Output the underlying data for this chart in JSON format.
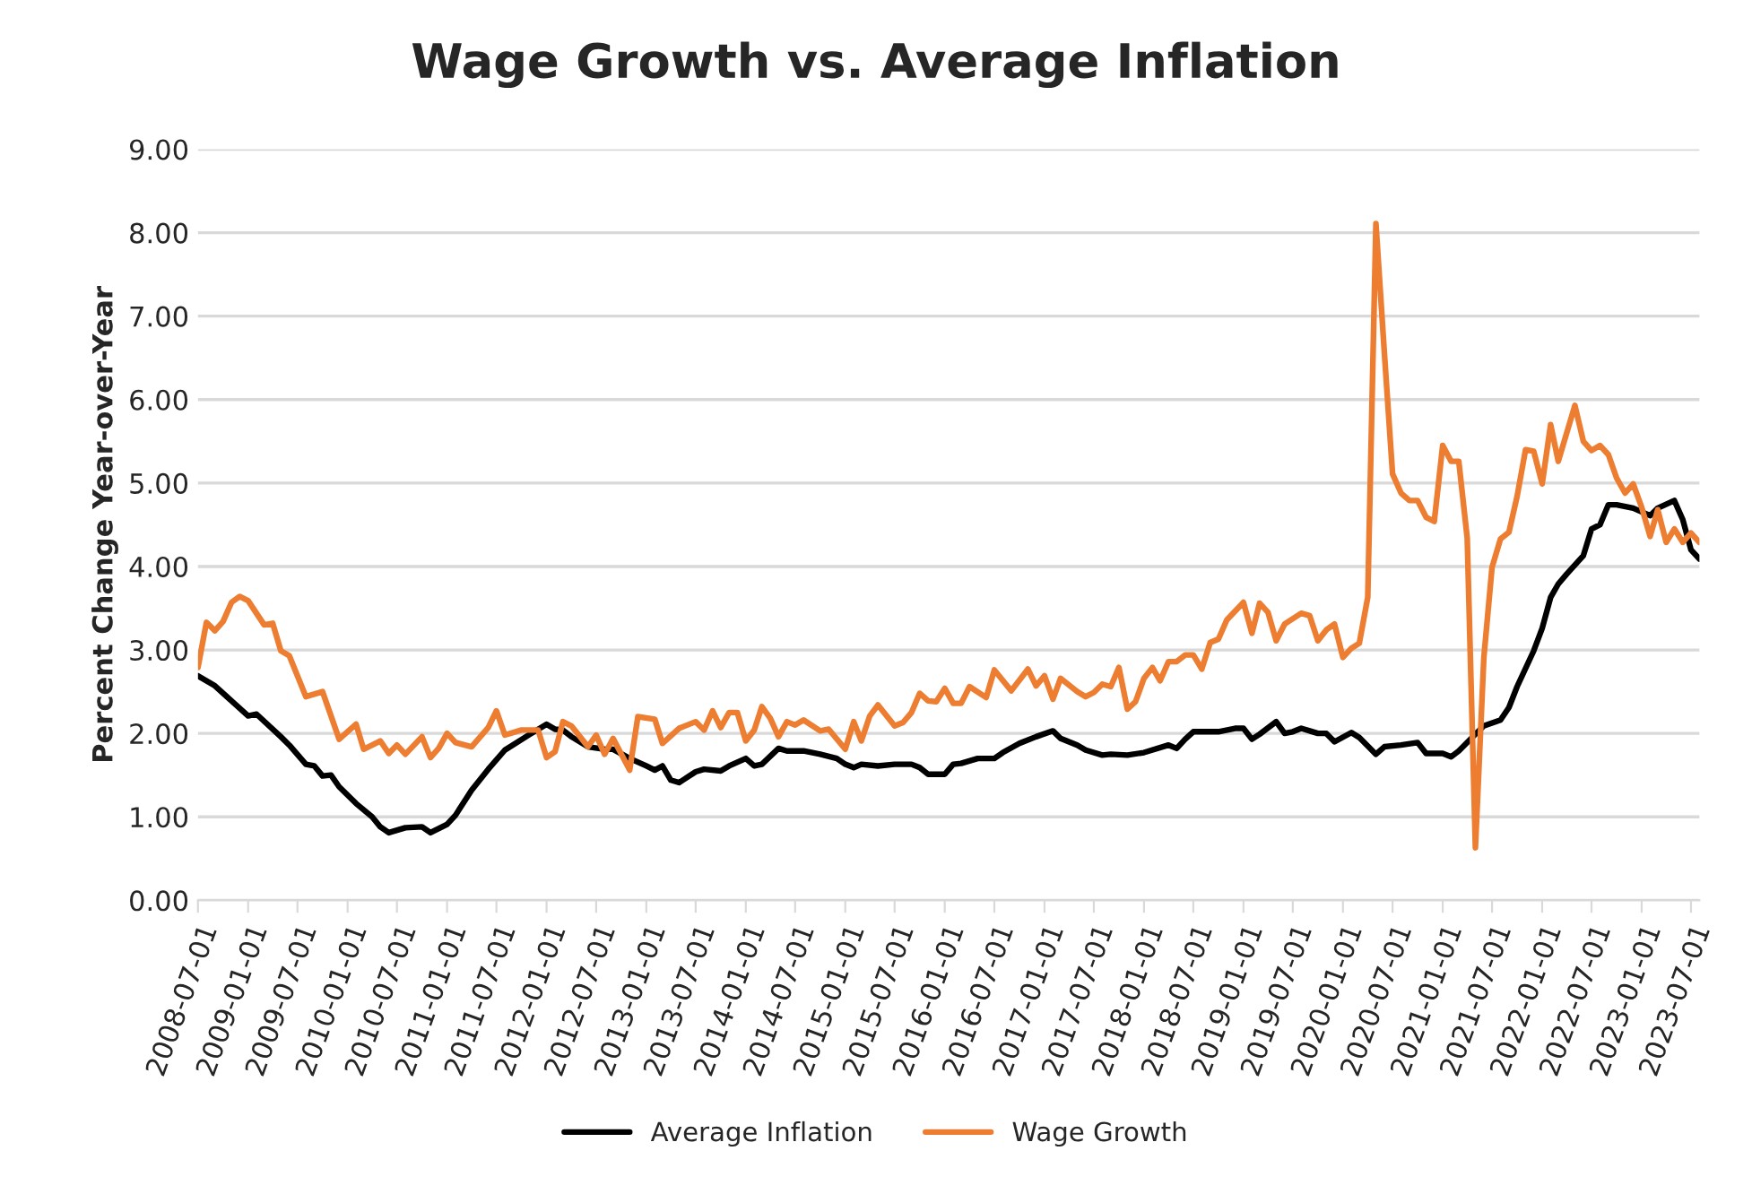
{
  "chart_data": {
    "type": "line",
    "title": "Wage Growth vs. Average Inflation",
    "ylabel": "Percent Change Year-over-Year",
    "series": [
      {
        "name": "Average Inflation",
        "color": "#000000",
        "x": [
          "2008-07",
          "2008-09",
          "2008-11",
          "2009-01",
          "2009-02",
          "2009-05",
          "2009-06",
          "2009-08",
          "2009-09",
          "2009-10",
          "2009-11",
          "2009-12",
          "2010-02",
          "2010-04",
          "2010-05",
          "2010-06",
          "2010-08",
          "2010-10",
          "2010-11",
          "2011-01",
          "2011-02",
          "2011-04",
          "2011-06",
          "2011-08",
          "2011-11",
          "2012-01",
          "2012-02",
          "2012-03",
          "2012-04",
          "2012-06",
          "2012-08",
          "2012-09",
          "2012-11",
          "2013-01",
          "2013-02",
          "2013-03",
          "2013-04",
          "2013-05",
          "2013-07",
          "2013-08",
          "2013-10",
          "2013-11",
          "2014-01",
          "2014-02",
          "2014-03",
          "2014-05",
          "2014-06",
          "2014-08",
          "2014-10",
          "2014-12",
          "2015-01",
          "2015-02",
          "2015-03",
          "2015-05",
          "2015-07",
          "2015-09",
          "2015-10",
          "2015-11",
          "2016-01",
          "2016-02",
          "2016-03",
          "2016-05",
          "2016-07",
          "2016-08",
          "2016-10",
          "2016-12",
          "2017-02",
          "2017-03",
          "2017-05",
          "2017-06",
          "2017-08",
          "2017-09",
          "2017-11",
          "2018-01",
          "2018-04",
          "2018-05",
          "2018-06",
          "2018-07",
          "2018-10",
          "2018-12",
          "2019-01",
          "2019-02",
          "2019-03",
          "2019-05",
          "2019-06",
          "2019-07",
          "2019-08",
          "2019-09",
          "2019-10",
          "2019-11",
          "2019-12",
          "2020-02",
          "2020-03",
          "2020-05",
          "2020-06",
          "2020-08",
          "2020-10",
          "2020-11",
          "2021-01",
          "2021-02",
          "2021-03",
          "2021-05",
          "2021-06",
          "2021-08",
          "2021-09",
          "2021-10",
          "2021-12",
          "2022-01",
          "2022-02",
          "2022-03",
          "2022-04",
          "2022-06",
          "2022-07",
          "2022-08",
          "2022-09",
          "2022-10",
          "2022-12",
          "2023-02",
          "2023-03",
          "2023-05",
          "2023-06",
          "2023-07",
          "2023-08"
        ],
        "values": [
          2.69,
          2.57,
          2.39,
          2.21,
          2.23,
          1.96,
          1.86,
          1.63,
          1.61,
          1.49,
          1.5,
          1.36,
          1.16,
          1.0,
          0.88,
          0.81,
          0.87,
          0.88,
          0.81,
          0.91,
          1.02,
          1.32,
          1.57,
          1.8,
          1.99,
          2.11,
          2.05,
          2.04,
          1.96,
          1.84,
          1.81,
          1.81,
          1.7,
          1.61,
          1.56,
          1.61,
          1.44,
          1.41,
          1.54,
          1.57,
          1.55,
          1.61,
          1.7,
          1.61,
          1.63,
          1.82,
          1.79,
          1.79,
          1.75,
          1.7,
          1.63,
          1.59,
          1.63,
          1.61,
          1.63,
          1.63,
          1.59,
          1.51,
          1.51,
          1.63,
          1.64,
          1.7,
          1.7,
          1.77,
          1.88,
          1.96,
          2.03,
          1.94,
          1.86,
          1.8,
          1.74,
          1.75,
          1.74,
          1.77,
          1.86,
          1.82,
          1.93,
          2.02,
          2.02,
          2.06,
          2.06,
          1.93,
          1.99,
          2.14,
          2.0,
          2.02,
          2.06,
          2.03,
          2.0,
          2.0,
          1.9,
          2.01,
          1.95,
          1.75,
          1.84,
          1.86,
          1.89,
          1.76,
          1.76,
          1.72,
          1.79,
          1.99,
          2.09,
          2.16,
          2.31,
          2.56,
          2.99,
          3.26,
          3.63,
          3.79,
          3.91,
          4.13,
          4.45,
          4.5,
          4.74,
          4.74,
          4.7,
          4.61,
          4.7,
          4.79,
          4.56,
          4.2,
          4.09
        ]
      },
      {
        "name": "Wage Growth",
        "color": "#ed7d31",
        "x": [
          "2008-07",
          "2008-08",
          "2008-09",
          "2008-10",
          "2008-11",
          "2008-12",
          "2009-01",
          "2009-03",
          "2009-04",
          "2009-05",
          "2009-06",
          "2009-08",
          "2009-10",
          "2009-12",
          "2010-02",
          "2010-03",
          "2010-05",
          "2010-06",
          "2010-07",
          "2010-08",
          "2010-10",
          "2010-11",
          "2010-12",
          "2011-01",
          "2011-02",
          "2011-04",
          "2011-06",
          "2011-07",
          "2011-08",
          "2011-10",
          "2011-12",
          "2012-01",
          "2012-02",
          "2012-03",
          "2012-04",
          "2012-06",
          "2012-07",
          "2012-08",
          "2012-09",
          "2012-11",
          "2012-12",
          "2013-02",
          "2013-03",
          "2013-05",
          "2013-07",
          "2013-08",
          "2013-09",
          "2013-10",
          "2013-11",
          "2013-12",
          "2014-01",
          "2014-02",
          "2014-03",
          "2014-04",
          "2014-05",
          "2014-06",
          "2014-07",
          "2014-08",
          "2014-10",
          "2014-11",
          "2015-01",
          "2015-02",
          "2015-03",
          "2015-04",
          "2015-05",
          "2015-07",
          "2015-08",
          "2015-09",
          "2015-10",
          "2015-11",
          "2015-12",
          "2016-01",
          "2016-02",
          "2016-03",
          "2016-04",
          "2016-06",
          "2016-07",
          "2016-09",
          "2016-11",
          "2016-12",
          "2017-01",
          "2017-02",
          "2017-03",
          "2017-05",
          "2017-06",
          "2017-07",
          "2017-08",
          "2017-09",
          "2017-10",
          "2017-11",
          "2017-12",
          "2018-01",
          "2018-02",
          "2018-03",
          "2018-04",
          "2018-05",
          "2018-06",
          "2018-07",
          "2018-08",
          "2018-09",
          "2018-10",
          "2018-11",
          "2019-01",
          "2019-02",
          "2019-03",
          "2019-04",
          "2019-05",
          "2019-06",
          "2019-08",
          "2019-09",
          "2019-10",
          "2019-11",
          "2019-12",
          "2020-01",
          "2020-02",
          "2020-03",
          "2020-04",
          "2020-05",
          "2020-06",
          "2020-07",
          "2020-08",
          "2020-09",
          "2020-10",
          "2020-11",
          "2020-12",
          "2021-01",
          "2021-02",
          "2021-03",
          "2021-04",
          "2021-05",
          "2021-06",
          "2021-07",
          "2021-08",
          "2021-09",
          "2021-10",
          "2021-11",
          "2021-12",
          "2022-01",
          "2022-02",
          "2022-03",
          "2022-05",
          "2022-06",
          "2022-07",
          "2022-08",
          "2022-09",
          "2022-10",
          "2022-11",
          "2022-12",
          "2023-01",
          "2023-02",
          "2023-03",
          "2023-04",
          "2023-05",
          "2023-06",
          "2023-07",
          "2023-08"
        ],
        "values": [
          2.79,
          3.33,
          3.23,
          3.34,
          3.57,
          3.64,
          3.59,
          3.3,
          3.32,
          2.99,
          2.93,
          2.44,
          2.5,
          1.93,
          2.11,
          1.81,
          1.91,
          1.76,
          1.86,
          1.75,
          1.96,
          1.71,
          1.82,
          2.0,
          1.89,
          1.84,
          2.07,
          2.27,
          1.98,
          2.04,
          2.04,
          1.71,
          1.78,
          2.14,
          2.09,
          1.84,
          1.98,
          1.75,
          1.94,
          1.56,
          2.2,
          2.17,
          1.88,
          2.06,
          2.14,
          2.04,
          2.27,
          2.07,
          2.25,
          2.25,
          1.91,
          2.04,
          2.32,
          2.18,
          1.96,
          2.14,
          2.1,
          2.16,
          2.03,
          2.05,
          1.81,
          2.14,
          1.91,
          2.21,
          2.34,
          2.09,
          2.13,
          2.25,
          2.48,
          2.39,
          2.38,
          2.54,
          2.36,
          2.36,
          2.56,
          2.43,
          2.76,
          2.51,
          2.77,
          2.57,
          2.69,
          2.41,
          2.66,
          2.5,
          2.44,
          2.49,
          2.59,
          2.56,
          2.79,
          2.29,
          2.38,
          2.66,
          2.79,
          2.63,
          2.86,
          2.86,
          2.94,
          2.94,
          2.77,
          3.09,
          3.13,
          3.36,
          3.57,
          3.2,
          3.56,
          3.45,
          3.11,
          3.31,
          3.44,
          3.41,
          3.11,
          3.24,
          3.31,
          2.91,
          3.02,
          3.08,
          3.63,
          8.11,
          6.56,
          5.11,
          4.88,
          4.79,
          4.79,
          4.59,
          4.54,
          5.45,
          5.26,
          5.26,
          4.34,
          0.63,
          2.91,
          3.99,
          4.33,
          4.41,
          4.84,
          5.4,
          5.38,
          4.99,
          5.7,
          5.26,
          5.93,
          5.5,
          5.39,
          5.45,
          5.34,
          5.06,
          4.88,
          4.99,
          4.71,
          4.36,
          4.68,
          4.29,
          4.45,
          4.29,
          4.4,
          4.29
        ]
      }
    ],
    "xlim": [
      "2008-07-01",
      "2023-08-01"
    ],
    "xticks": [
      "2008-07-01",
      "2009-01-01",
      "2009-07-01",
      "2010-01-01",
      "2010-07-01",
      "2011-01-01",
      "2011-07-01",
      "2012-01-01",
      "2012-07-01",
      "2013-01-01",
      "2013-07-01",
      "2014-01-01",
      "2014-07-01",
      "2015-01-01",
      "2015-07-01",
      "2016-01-01",
      "2016-07-01",
      "2017-01-01",
      "2017-07-01",
      "2018-01-01",
      "2018-07-01",
      "2019-01-01",
      "2019-07-01",
      "2020-01-01",
      "2020-07-01",
      "2021-01-01",
      "2021-07-01",
      "2022-01-01",
      "2022-07-01",
      "2023-01-01",
      "2023-07-01"
    ],
    "ylim": [
      0,
      9
    ],
    "yticks": [
      {
        "value": 0,
        "label": "0.00"
      },
      {
        "value": 1,
        "label": "1.00"
      },
      {
        "value": 2,
        "label": "2.00"
      },
      {
        "value": 3,
        "label": "3.00"
      },
      {
        "value": 4,
        "label": "4.00"
      },
      {
        "value": 5,
        "label": "5.00"
      },
      {
        "value": 6,
        "label": "6.00"
      },
      {
        "value": 7,
        "label": "7.00"
      },
      {
        "value": 8,
        "label": "8.00"
      },
      {
        "value": 9,
        "label": "9.00"
      }
    ],
    "grid": "y",
    "legend": "bottom",
    "line_style": "solid"
  }
}
